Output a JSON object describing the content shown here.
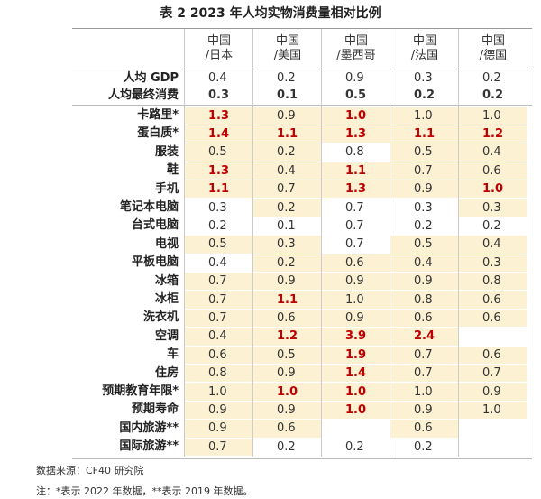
{
  "header": {
    "title": "表 2 2023 年人均实物消费量相对比例"
  },
  "table": {
    "columns": [
      [
        "中国",
        "/日本"
      ],
      [
        "中国",
        "/美国"
      ],
      [
        "中国",
        "/墨西哥"
      ],
      [
        "中国",
        "/法国"
      ],
      [
        "中国",
        "/德国"
      ]
    ],
    "top_rows": [
      {
        "label": "人均 GDP",
        "cells": [
          "0.4",
          "0.2",
          "0.9",
          "0.3",
          "0.2"
        ],
        "bold": false
      },
      {
        "label": "人均最终消费",
        "cells": [
          "0.3",
          "0.1",
          "0.5",
          "0.2",
          "0.2"
        ],
        "bold": true
      }
    ],
    "rows": [
      {
        "label": "卡路里*",
        "cells": [
          {
            "v": "1.3",
            "red": true,
            "bg": true
          },
          {
            "v": "0.9",
            "bg": true
          },
          {
            "v": "1.0",
            "red": true,
            "bg": true
          },
          {
            "v": "1.0",
            "bg": true
          },
          {
            "v": "1.0",
            "bg": true
          }
        ]
      },
      {
        "label": "蛋白质*",
        "cells": [
          {
            "v": "1.4",
            "red": true,
            "bg": true
          },
          {
            "v": "1.1",
            "red": true,
            "bg": true
          },
          {
            "v": "1.3",
            "red": true,
            "bg": true
          },
          {
            "v": "1.1",
            "red": true,
            "bg": true
          },
          {
            "v": "1.2",
            "red": true,
            "bg": true
          }
        ]
      },
      {
        "label": "服装",
        "cells": [
          {
            "v": "0.5",
            "bg": true
          },
          {
            "v": "0.2",
            "bg": true
          },
          {
            "v": "0.8"
          },
          {
            "v": "0.5",
            "bg": true
          },
          {
            "v": "0.4",
            "bg": true
          }
        ]
      },
      {
        "label": "鞋",
        "cells": [
          {
            "v": "1.3",
            "red": true,
            "bg": true
          },
          {
            "v": "0.4",
            "bg": true
          },
          {
            "v": "1.1",
            "red": true,
            "bg": true
          },
          {
            "v": "0.7",
            "bg": true
          },
          {
            "v": "0.6",
            "bg": true
          }
        ]
      },
      {
        "label": "手机",
        "cells": [
          {
            "v": "1.1",
            "red": true,
            "bg": true
          },
          {
            "v": "0.7",
            "bg": true
          },
          {
            "v": "1.3",
            "red": true,
            "bg": true
          },
          {
            "v": "0.9",
            "bg": true
          },
          {
            "v": "1.0",
            "red": true,
            "bg": true
          }
        ]
      },
      {
        "label": "笔记本电脑",
        "cells": [
          {
            "v": "0.3"
          },
          {
            "v": "0.2",
            "bg": true
          },
          {
            "v": "0.7"
          },
          {
            "v": "0.3"
          },
          {
            "v": "0.3",
            "bg": true
          }
        ]
      },
      {
        "label": "台式电脑",
        "cells": [
          {
            "v": "0.2"
          },
          {
            "v": "0.1"
          },
          {
            "v": "0.7"
          },
          {
            "v": "0.2"
          },
          {
            "v": "0.2"
          }
        ]
      },
      {
        "label": "电视",
        "cells": [
          {
            "v": "0.5",
            "bg": true
          },
          {
            "v": "0.3",
            "bg": true
          },
          {
            "v": "0.7"
          },
          {
            "v": "0.5",
            "bg": true
          },
          {
            "v": "0.4",
            "bg": true
          }
        ]
      },
      {
        "label": "平板电脑",
        "cells": [
          {
            "v": "0.4"
          },
          {
            "v": "0.2",
            "bg": true
          },
          {
            "v": "0.6",
            "bg": true
          },
          {
            "v": "0.4",
            "bg": true
          },
          {
            "v": "0.3",
            "bg": true
          }
        ]
      },
      {
        "label": "冰箱",
        "cells": [
          {
            "v": "0.7",
            "bg": true
          },
          {
            "v": "0.9",
            "bg": true
          },
          {
            "v": "0.9",
            "bg": true
          },
          {
            "v": "0.9",
            "bg": true
          },
          {
            "v": "0.8",
            "bg": true
          }
        ]
      },
      {
        "label": "冰柜",
        "cells": [
          {
            "v": "0.7",
            "bg": true
          },
          {
            "v": "1.1",
            "red": true,
            "bg": true
          },
          {
            "v": "1.0",
            "bg": true
          },
          {
            "v": "0.8",
            "bg": true
          },
          {
            "v": "0.6",
            "bg": true
          }
        ]
      },
      {
        "label": "洗衣机",
        "cells": [
          {
            "v": "0.7",
            "bg": true
          },
          {
            "v": "0.6",
            "bg": true
          },
          {
            "v": "0.9",
            "bg": true
          },
          {
            "v": "0.6",
            "bg": true
          },
          {
            "v": "0.6",
            "bg": true
          }
        ]
      },
      {
        "label": "空调",
        "cells": [
          {
            "v": "0.4",
            "bg": true
          },
          {
            "v": "1.2",
            "red": true,
            "bg": true
          },
          {
            "v": "3.9",
            "red": true,
            "bg": true
          },
          {
            "v": "2.4",
            "red": true,
            "bg": true
          },
          {
            "v": null
          }
        ]
      },
      {
        "label": "车",
        "cells": [
          {
            "v": "0.6",
            "bg": true
          },
          {
            "v": "0.5",
            "bg": true
          },
          {
            "v": "1.9",
            "red": true,
            "bg": true
          },
          {
            "v": "0.7",
            "bg": true
          },
          {
            "v": "0.6",
            "bg": true
          }
        ]
      },
      {
        "label": "住房",
        "cells": [
          {
            "v": "0.8",
            "bg": true
          },
          {
            "v": "0.9",
            "bg": true
          },
          {
            "v": "1.4",
            "red": true,
            "bg": true
          },
          {
            "v": "0.7",
            "bg": true
          },
          {
            "v": "0.7",
            "bg": true
          }
        ]
      },
      {
        "label": "预期教育年限*",
        "cells": [
          {
            "v": "1.0",
            "bg": true
          },
          {
            "v": "1.0",
            "red": true,
            "bg": true
          },
          {
            "v": "1.0",
            "red": true,
            "bg": true
          },
          {
            "v": "1.0",
            "bg": true
          },
          {
            "v": "0.9",
            "bg": true
          }
        ]
      },
      {
        "label": "预期寿命",
        "cells": [
          {
            "v": "0.9",
            "bg": true
          },
          {
            "v": "0.9",
            "bg": true
          },
          {
            "v": "1.0",
            "red": true,
            "bg": true
          },
          {
            "v": "0.9",
            "bg": true
          },
          {
            "v": "1.0",
            "bg": true
          }
        ]
      },
      {
        "label": "国内旅游**",
        "cells": [
          {
            "v": "0.9",
            "bg": true
          },
          {
            "v": "0.6",
            "bg": true
          },
          {
            "v": null
          },
          {
            "v": "0.6",
            "bg": true
          },
          {
            "v": null
          }
        ]
      },
      {
        "label": "国际旅游**",
        "cells": [
          {
            "v": "0.7",
            "bg": true
          },
          {
            "v": "0.2"
          },
          {
            "v": "0.2"
          },
          {
            "v": "0.2"
          },
          {
            "v": null
          }
        ]
      }
    ]
  },
  "footer": {
    "source": "数据来源：CF40 研究院",
    "note": "注：*表示 2022 年数据，**表示 2019 年数据。"
  }
}
